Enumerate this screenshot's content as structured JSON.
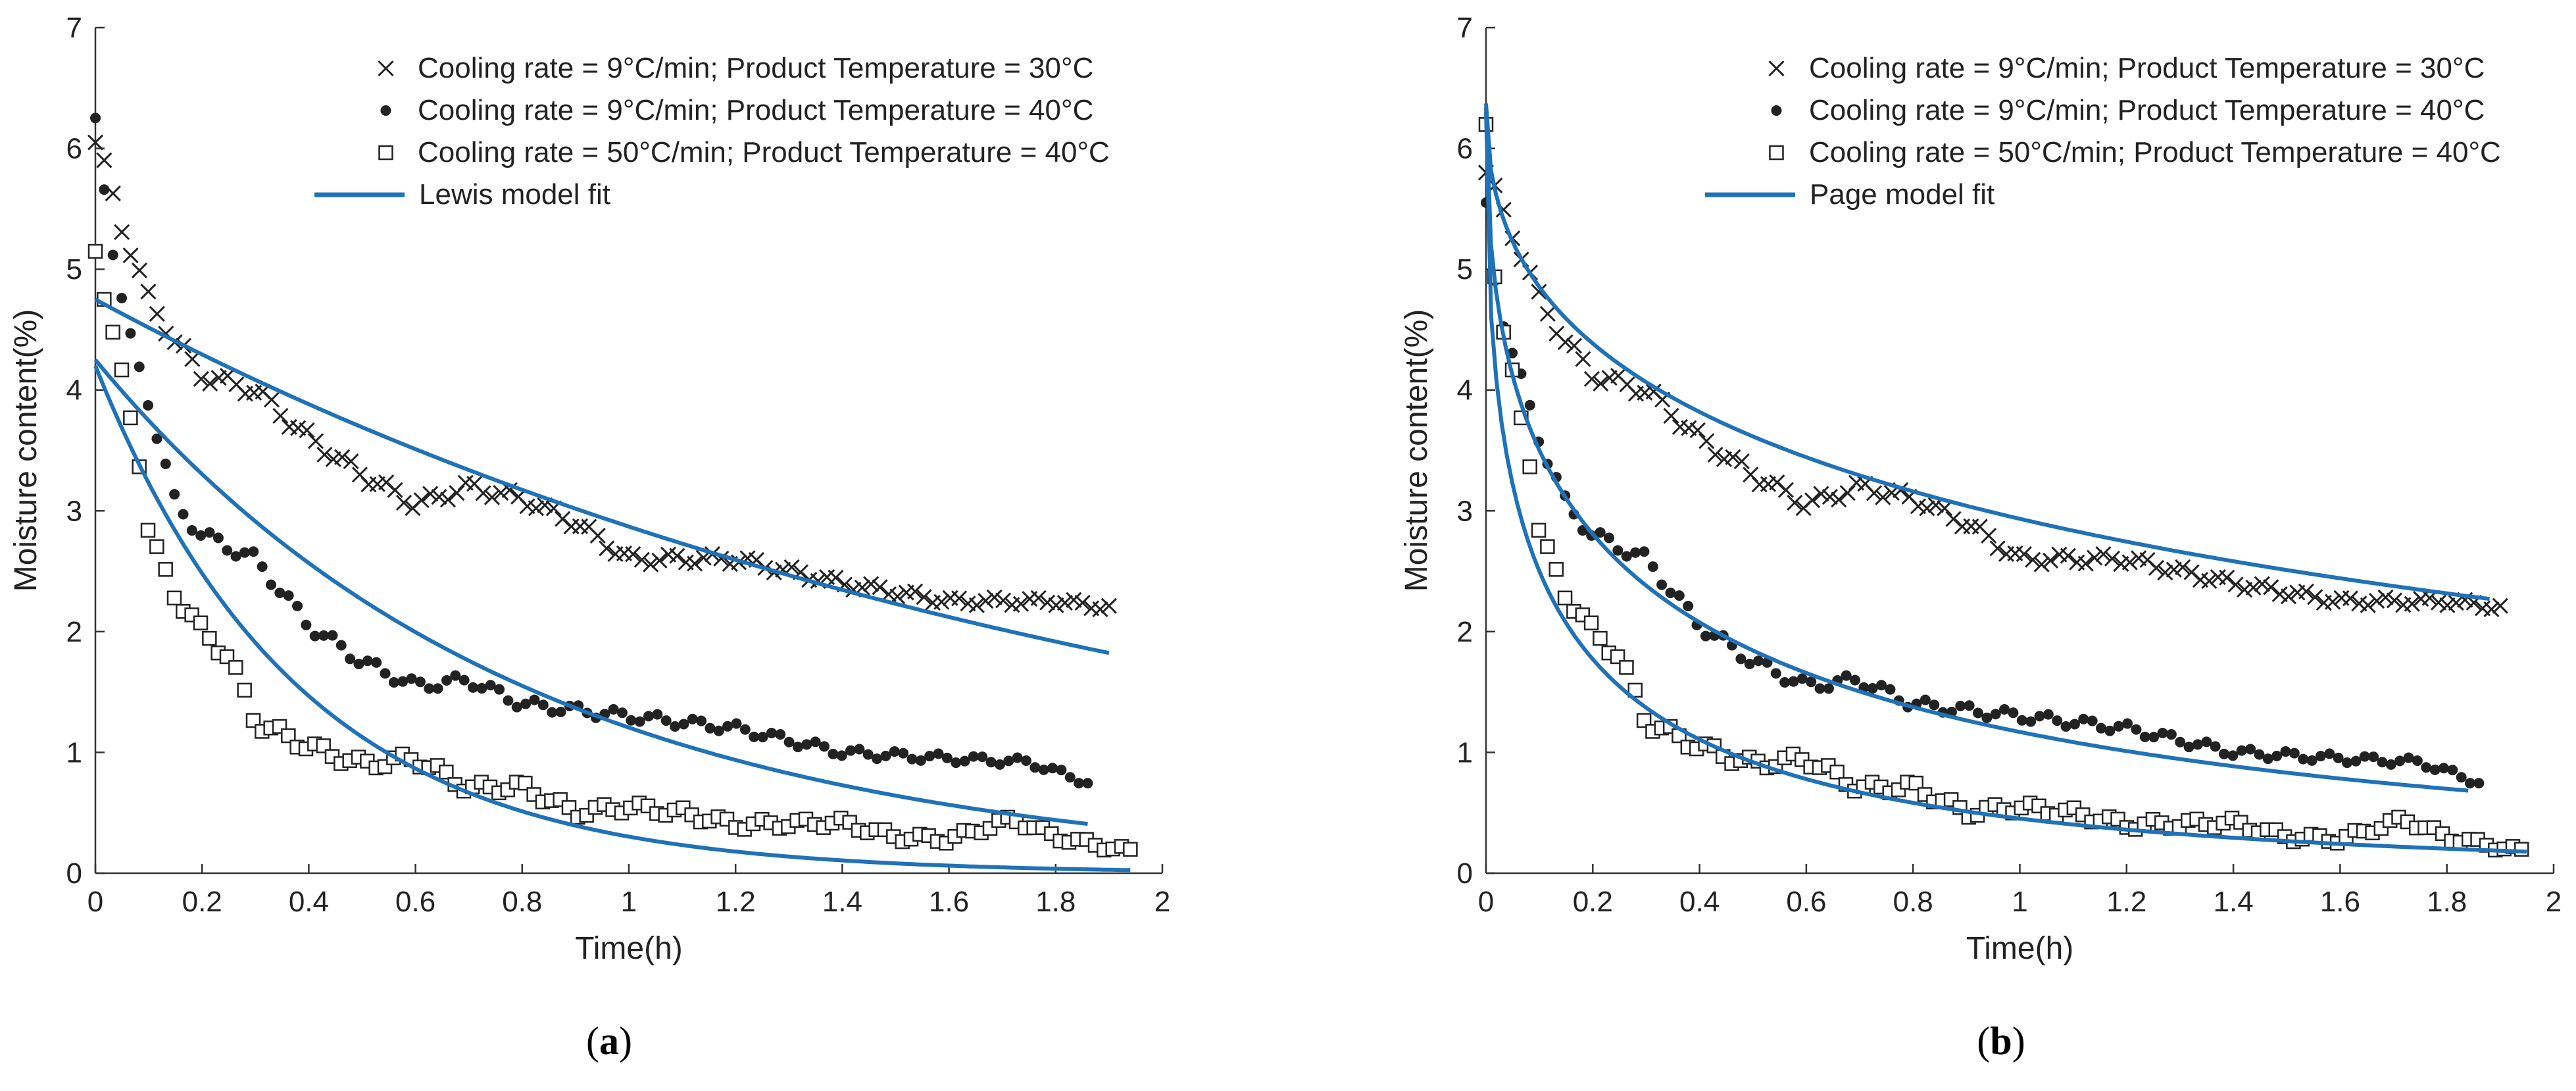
{
  "figure": {
    "colors": {
      "fit": "#1f72b8",
      "axis": "#333333",
      "marker": "#222222"
    }
  },
  "chart_data": [
    {
      "type": "scatter",
      "panel": "(a)",
      "panel_letter": "a",
      "xlabel": "Time(h)",
      "ylabel": "Moisture content(%)",
      "xlim": [
        0,
        2
      ],
      "ylim": [
        0,
        7
      ],
      "xticks": [
        "0",
        "0.2",
        "0.4",
        "0.6",
        "0.8",
        "1",
        "1.2",
        "1.4",
        "1.6",
        "1.8",
        "2"
      ],
      "yticks": [
        "0",
        "1",
        "2",
        "3",
        "4",
        "5",
        "6",
        "7"
      ],
      "legend": [
        {
          "marker": "x",
          "label": "Cooling rate = 9°C/min; Product Temperature = 30°C"
        },
        {
          "marker": "dot",
          "label": "Cooling rate = 9°C/min; Product Temperature = 40°C"
        },
        {
          "marker": "square",
          "label": "Cooling rate = 50°C/min; Product Temperature = 40°C"
        },
        {
          "marker": "line",
          "label": "Lewis model fit"
        }
      ],
      "model": "lewis",
      "series": [
        {
          "name": "Cooling rate = 9°C/min; Product Temperature = 30°C",
          "marker": "x",
          "t_end": 1.9,
          "anchors": [
            [
              0,
              6.05
            ],
            [
              0.02,
              5.8
            ],
            [
              0.05,
              5.35
            ],
            [
              0.1,
              4.75
            ],
            [
              0.15,
              4.4
            ],
            [
              0.2,
              4.12
            ],
            [
              0.3,
              4.0
            ],
            [
              0.4,
              3.6
            ],
            [
              0.5,
              3.3
            ],
            [
              0.6,
              3.05
            ],
            [
              0.7,
              3.2
            ],
            [
              0.8,
              3.1
            ],
            [
              0.9,
              2.9
            ],
            [
              1.0,
              2.6
            ],
            [
              1.2,
              2.6
            ],
            [
              1.4,
              2.4
            ],
            [
              1.6,
              2.25
            ],
            [
              1.8,
              2.25
            ],
            [
              1.9,
              2.2
            ]
          ],
          "fit": [
            4.75,
            0.504
          ]
        },
        {
          "name": "Cooling rate = 9°C/min; Product Temperature = 40°C",
          "marker": "dot",
          "t_end": 1.86,
          "anchors": [
            [
              0,
              6.2
            ],
            [
              0.03,
              5.25
            ],
            [
              0.06,
              4.5
            ],
            [
              0.1,
              3.9
            ],
            [
              0.15,
              3.05
            ],
            [
              0.2,
              2.8
            ],
            [
              0.3,
              2.6
            ],
            [
              0.4,
              2.05
            ],
            [
              0.5,
              1.75
            ],
            [
              0.6,
              1.55
            ],
            [
              0.7,
              1.6
            ],
            [
              0.8,
              1.4
            ],
            [
              0.9,
              1.35
            ],
            [
              1.0,
              1.3
            ],
            [
              1.2,
              1.2
            ],
            [
              1.4,
              1.0
            ],
            [
              1.6,
              0.95
            ],
            [
              1.75,
              0.92
            ],
            [
              1.86,
              0.75
            ]
          ],
          "fit": [
            4.25,
            1.26
          ]
        },
        {
          "name": "Cooling rate = 50°C/min; Product Temperature = 40°C",
          "marker": "square",
          "t_end": 1.94,
          "anchors": [
            [
              0,
              5.2
            ],
            [
              0.02,
              4.7
            ],
            [
              0.05,
              4.1
            ],
            [
              0.08,
              3.5
            ],
            [
              0.1,
              2.8
            ],
            [
              0.15,
              2.3
            ],
            [
              0.2,
              2.0
            ],
            [
              0.25,
              1.8
            ],
            [
              0.3,
              1.25
            ],
            [
              0.4,
              1.05
            ],
            [
              0.5,
              0.9
            ],
            [
              0.6,
              0.95
            ],
            [
              0.7,
              0.7
            ],
            [
              0.8,
              0.72
            ],
            [
              0.9,
              0.5
            ],
            [
              1.0,
              0.55
            ],
            [
              1.1,
              0.5
            ],
            [
              1.2,
              0.4
            ],
            [
              1.4,
              0.42
            ],
            [
              1.5,
              0.3
            ],
            [
              1.6,
              0.28
            ],
            [
              1.72,
              0.45
            ],
            [
              1.8,
              0.3
            ],
            [
              1.94,
              0.18
            ]
          ],
          "fit": [
            4.2,
            2.63
          ]
        }
      ]
    },
    {
      "type": "scatter",
      "panel": "(b)",
      "panel_letter": "b",
      "xlabel": "Time(h)",
      "ylabel": "Moisture content(%)",
      "xlim": [
        0,
        2
      ],
      "ylim": [
        0,
        7
      ],
      "xticks": [
        "0",
        "0.2",
        "0.4",
        "0.6",
        "0.8",
        "1",
        "1.2",
        "1.4",
        "1.6",
        "1.8",
        "2"
      ],
      "yticks": [
        "0",
        "1",
        "2",
        "3",
        "4",
        "5",
        "6",
        "7"
      ],
      "legend": [
        {
          "marker": "x",
          "label": "Cooling rate = 9°C/min; Product Temperature = 30°C"
        },
        {
          "marker": "dot",
          "label": "Cooling rate = 9°C/min; Product Temperature = 40°C"
        },
        {
          "marker": "square",
          "label": "Cooling rate = 50°C/min; Product Temperature = 40°C"
        },
        {
          "marker": "line",
          "label": "Page model fit"
        }
      ],
      "model": "page",
      "series": [
        {
          "name": "Cooling rate = 9°C/min; Product Temperature = 30°C",
          "marker": "x",
          "t_end": 1.9,
          "anchors": [
            [
              0,
              5.8
            ],
            [
              0.02,
              5.6
            ],
            [
              0.05,
              5.3
            ],
            [
              0.1,
              4.75
            ],
            [
              0.15,
              4.4
            ],
            [
              0.2,
              4.12
            ],
            [
              0.3,
              4.0
            ],
            [
              0.4,
              3.6
            ],
            [
              0.5,
              3.3
            ],
            [
              0.6,
              3.05
            ],
            [
              0.7,
              3.2
            ],
            [
              0.8,
              3.1
            ],
            [
              0.9,
              2.9
            ],
            [
              1.0,
              2.6
            ],
            [
              1.2,
              2.6
            ],
            [
              1.4,
              2.4
            ],
            [
              1.6,
              2.25
            ],
            [
              1.8,
              2.25
            ],
            [
              1.9,
              2.2
            ]
          ],
          "fit": [
            6.4,
            0.78,
            0.45
          ],
          "fit_end": 1.88
        },
        {
          "name": "Cooling rate = 9°C/min; Product Temperature = 40°C",
          "marker": "dot",
          "t_end": 1.86,
          "anchors": [
            [
              0,
              5.5
            ],
            [
              0.02,
              4.8
            ],
            [
              0.05,
              4.3
            ],
            [
              0.1,
              3.6
            ],
            [
              0.15,
              3.05
            ],
            [
              0.2,
              2.8
            ],
            [
              0.3,
              2.6
            ],
            [
              0.4,
              2.05
            ],
            [
              0.5,
              1.75
            ],
            [
              0.6,
              1.55
            ],
            [
              0.7,
              1.6
            ],
            [
              0.8,
              1.4
            ],
            [
              0.9,
              1.35
            ],
            [
              1.0,
              1.3
            ],
            [
              1.2,
              1.2
            ],
            [
              1.4,
              1.0
            ],
            [
              1.6,
              0.95
            ],
            [
              1.75,
              0.92
            ],
            [
              1.86,
              0.75
            ]
          ],
          "fit": [
            6.4,
            1.7,
            0.45
          ],
          "fit_end": 1.84
        },
        {
          "name": "Cooling rate = 50°C/min; Product Temperature = 40°C",
          "marker": "square",
          "t_end": 1.94,
          "anchors": [
            [
              0,
              6.25
            ],
            [
              0.02,
              4.7
            ],
            [
              0.05,
              4.1
            ],
            [
              0.08,
              3.5
            ],
            [
              0.1,
              2.8
            ],
            [
              0.15,
              2.3
            ],
            [
              0.2,
              2.0
            ],
            [
              0.25,
              1.8
            ],
            [
              0.3,
              1.25
            ],
            [
              0.4,
              1.05
            ],
            [
              0.5,
              0.9
            ],
            [
              0.6,
              0.95
            ],
            [
              0.7,
              0.7
            ],
            [
              0.8,
              0.72
            ],
            [
              0.9,
              0.5
            ],
            [
              1.0,
              0.55
            ],
            [
              1.1,
              0.5
            ],
            [
              1.2,
              0.4
            ],
            [
              1.4,
              0.42
            ],
            [
              1.5,
              0.3
            ],
            [
              1.6,
              0.28
            ],
            [
              1.72,
              0.45
            ],
            [
              1.8,
              0.3
            ],
            [
              1.94,
              0.18
            ]
          ],
          "fit": [
            6.4,
            2.65,
            0.45
          ],
          "fit_end": 1.95
        }
      ]
    }
  ]
}
